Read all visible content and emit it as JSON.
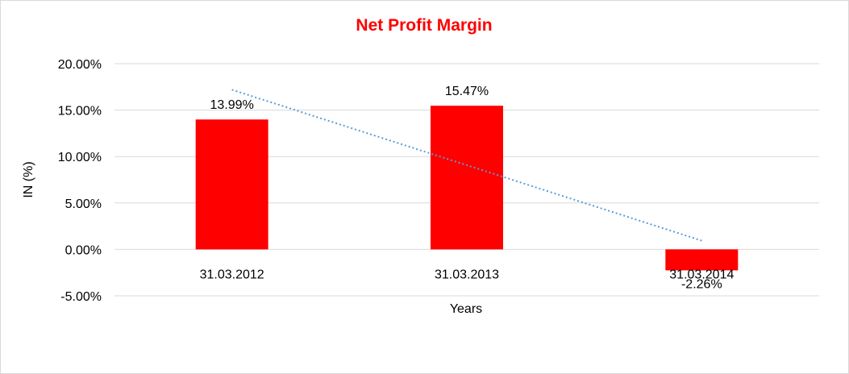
{
  "chart_data": {
    "type": "bar",
    "title": "Net Profit Margin",
    "xlabel": "Years",
    "ylabel": "IN (%)",
    "categories": [
      "31.03.2012",
      "31.03.2013",
      "31.03.2014"
    ],
    "values": [
      13.99,
      15.47,
      -2.26
    ],
    "data_labels": [
      "13.99%",
      "15.47%",
      "-2.26%"
    ],
    "ylim": [
      -5,
      20
    ],
    "y_ticks": [
      20,
      15,
      10,
      5,
      0,
      -5
    ],
    "y_tick_labels": [
      "20.00%",
      "15.00%",
      "10.00%",
      "5.00%",
      "0.00%",
      "-5.00%"
    ],
    "grid": true,
    "trendline": "linear",
    "colors": {
      "bar": "#ff0000",
      "title": "#ff0000",
      "trendline": "#5b9bd5",
      "grid": "#d9d9d9"
    }
  }
}
